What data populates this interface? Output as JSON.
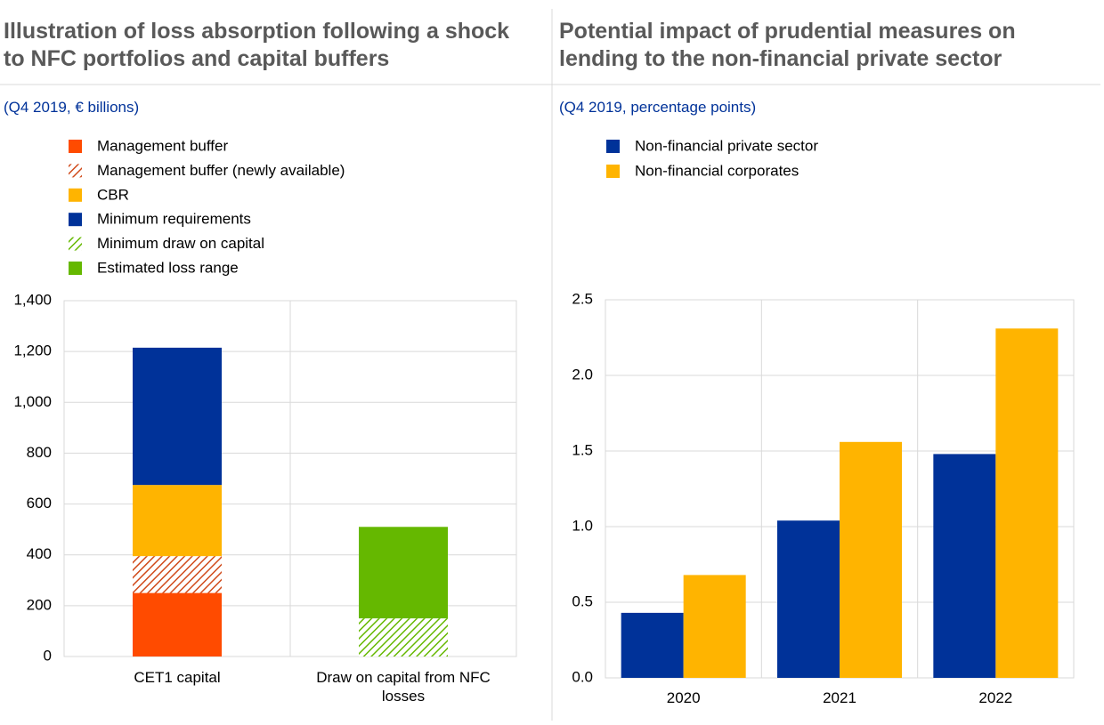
{
  "chart_data": [
    {
      "type": "bar",
      "stacked": true,
      "title": "Illustration of loss absorption following a shock to NFC portfolios and capital buffers",
      "subtitle": "(Q4 2019, € billions)",
      "categories": [
        "CET1 capital",
        "Draw on capital from NFC losses"
      ],
      "series": [
        {
          "name": "Management buffer",
          "color": "#ff4b00",
          "hatch": false,
          "values": [
            250,
            null
          ]
        },
        {
          "name": "Management buffer (newly available)",
          "color": "#d04a1a",
          "hatch": true,
          "values": [
            145,
            null
          ]
        },
        {
          "name": "CBR",
          "color": "#ffb400",
          "hatch": false,
          "values": [
            280,
            null
          ]
        },
        {
          "name": "Minimum requirements",
          "color": "#003299",
          "hatch": false,
          "values": [
            540,
            null
          ]
        },
        {
          "name": "Minimum draw on capital",
          "color": "#65b800",
          "hatch": true,
          "values": [
            null,
            150
          ]
        },
        {
          "name": "Estimated loss range",
          "color": "#65b800",
          "hatch": false,
          "values": [
            null,
            360
          ]
        }
      ],
      "ylim": [
        0,
        1400
      ],
      "yticks": [
        0,
        200,
        400,
        600,
        800,
        {
          "value": 1000,
          "label": "1,000"
        },
        {
          "value": 1200,
          "label": "1,200"
        },
        {
          "value": 1400,
          "label": "1,400"
        }
      ],
      "grid": true
    },
    {
      "type": "bar",
      "stacked": false,
      "title": "Potential impact of prudential measures on lending to the non-financial private sector",
      "subtitle": "(Q4 2019, percentage points)",
      "categories": [
        "2020",
        "2021",
        "2022"
      ],
      "series": [
        {
          "name": "Non-financial private sector",
          "color": "#003299",
          "hatch": false,
          "values": [
            0.43,
            1.04,
            1.48
          ]
        },
        {
          "name": "Non-financial corporates",
          "color": "#ffb400",
          "hatch": false,
          "values": [
            0.68,
            1.56,
            2.31
          ]
        }
      ],
      "ylim": [
        0,
        2.5
      ],
      "yticks": [
        {
          "value": 0,
          "label": "0.0"
        },
        0.5,
        {
          "value": 1,
          "label": "1.0"
        },
        1.5,
        {
          "value": 2,
          "label": "2.0"
        },
        2.5
      ],
      "grid": true
    }
  ]
}
